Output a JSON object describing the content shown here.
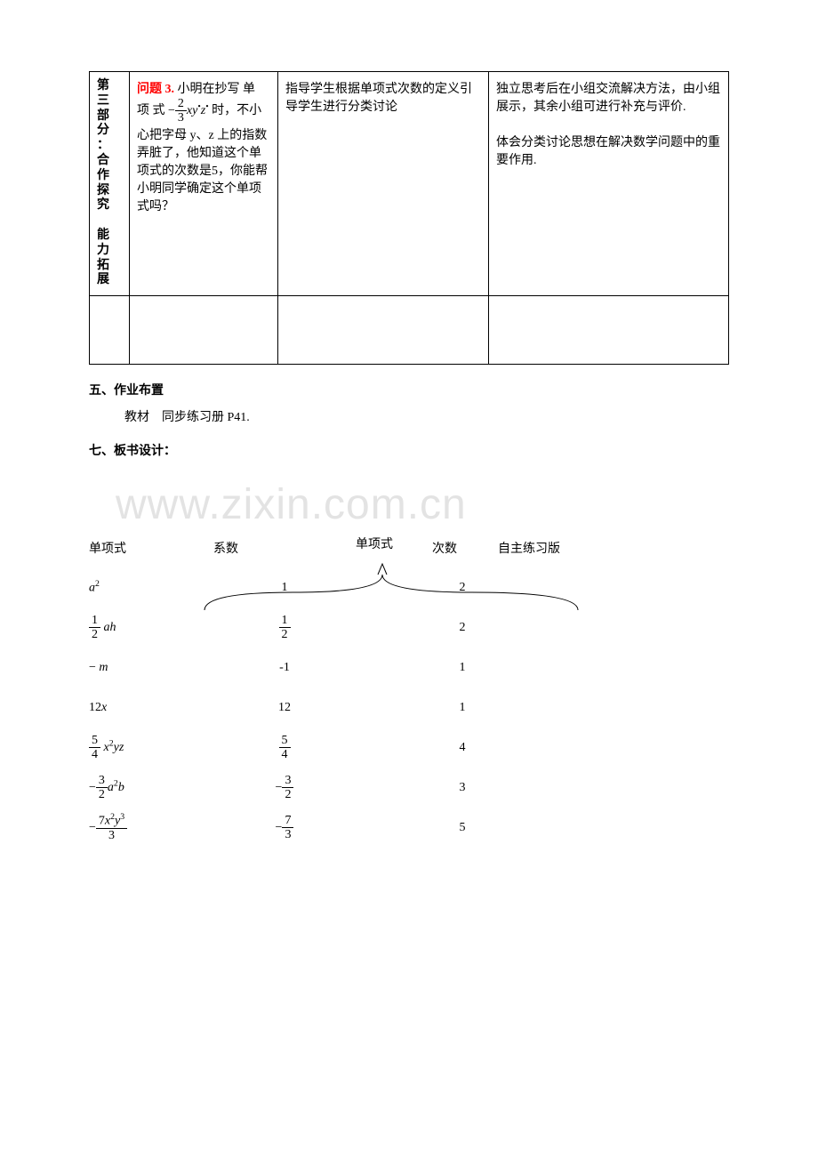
{
  "table": {
    "col1_label": "第三部分：合作探究　能力拓展",
    "col2": {
      "q_label": "问题 3.",
      "before_formula": " 小明在抄写 单 项 式 ",
      "formula": {
        "neg": "−",
        "num": "2",
        "den": "3",
        "tail": "xy",
        "dot1": "•",
        "z": "z",
        "dot2": "•"
      },
      "after_formula": "时，不小心把字母 y、z 上的指数弄脏了，他知道这个单项式的次数是5，你能帮小明同学确定这个单项式吗？"
    },
    "col3": "指导学生根据单项式次数的定义引导学生进行分类讨论",
    "col4_p1": "独立思考后在小组交流解决方法，由小组展示，其余小组可进行补充与评价.",
    "col4_p2": "体会分类讨论思想在解决数学问题中的重要作用."
  },
  "sections": {
    "homework_heading": "五、作业布置",
    "homework_text": "教材　同步练习册 P41.",
    "board_heading": "七、板书设计：",
    "board_title": "单项式"
  },
  "board_header": [
    "单项式",
    "系数",
    "次数",
    "自主练习版"
  ],
  "board_rows": [
    {
      "mono_html": "<span class='ital'>a</span><span class='sup'>2</span>",
      "coef_html": "1",
      "deg": "2"
    },
    {
      "mono_html": "<span class='frac'><span class='num'>1</span><span class='den'>2</span></span><span class='ital'> ah</span>",
      "coef_html": "<span class='frac'><span class='num'>1</span><span class='den'>2</span></span>",
      "deg": "2"
    },
    {
      "mono_html": "− <span class='ital'>m</span>",
      "coef_html": "-1",
      "deg": "1"
    },
    {
      "mono_html": "12<span class='ital'>x</span>",
      "coef_html": "12",
      "deg": "1"
    },
    {
      "mono_html": "<span class='frac'><span class='num'>5</span><span class='den'>4</span></span><span class='ital'> x</span><span class='sup'>2</span><span class='ital'>yz</span>",
      "coef_html": "<span class='frac'><span class='num'>5</span><span class='den'>4</span></span>",
      "deg": "4"
    },
    {
      "mono_html": "−<span class='frac'><span class='num'>3</span><span class='den'>2</span></span><span class='ital'>a</span><span class='sup'>2</span><span class='ital'>b</span>",
      "coef_html": "−<span class='frac'><span class='num'>3</span><span class='den'>2</span></span>",
      "deg": "3"
    },
    {
      "mono_html": "−<span class='frac'><span class='num'>7<span class=\"ital\">x</span><span class=\"sup\">2</span><span class=\"ital\">y</span><span class=\"sup\">3</span></span><span class='den'>3</span></span>",
      "coef_html": "−<span class='frac'><span class='num'>7</span><span class='den'>3</span></span>",
      "deg": "5"
    }
  ],
  "watermark": "www.zixin.com.cn"
}
